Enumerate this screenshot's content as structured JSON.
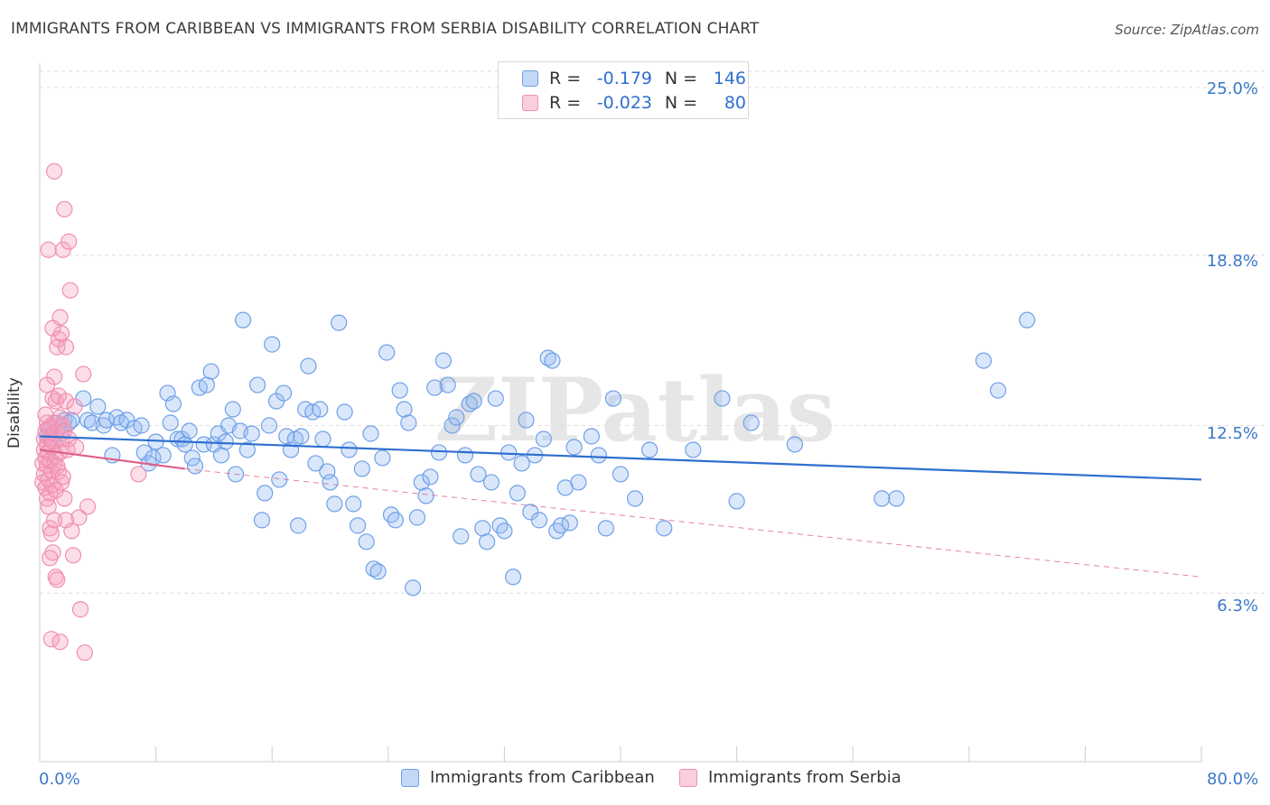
{
  "title": "IMMIGRANTS FROM CARIBBEAN VS IMMIGRANTS FROM SERBIA DISABILITY CORRELATION CHART",
  "source": "Source: ZipAtlas.com",
  "watermark": "ZIPatlas",
  "legend_top": {
    "rows": [
      {
        "r_label": "R =",
        "r_value": "-0.179",
        "n_label": "N =",
        "n_value": "146",
        "color": "#6fa0e8"
      },
      {
        "r_label": "R =",
        "r_value": "-0.023",
        "n_label": "N =",
        "n_value": "80",
        "color": "#f08fb0"
      }
    ]
  },
  "legend_bottom": {
    "items": [
      {
        "label": "Immigrants from Caribbean",
        "color": "#6fa0e8"
      },
      {
        "label": "Immigrants from Serbia",
        "color": "#f08fb0"
      }
    ]
  },
  "chart_data": {
    "type": "scatter",
    "ylabel": "Disability",
    "xlim": [
      0,
      80
    ],
    "ylim": [
      0,
      26.3
    ],
    "x_tick_labels": [
      "0.0%",
      "80.0%"
    ],
    "y_ticks": [
      6.3,
      12.5,
      18.8,
      25.0
    ],
    "y_tick_labels": [
      "6.3%",
      "12.5%",
      "18.8%",
      "25.0%"
    ],
    "grid": true,
    "legend_position": "top-center",
    "series": [
      {
        "name": "Immigrants from Caribbean",
        "color": "#6fa0e8",
        "line_color": "#2e6fcf",
        "trend": {
          "x": [
            0,
            80
          ],
          "y": [
            12.1,
            10.5
          ],
          "dashed_extension": false
        },
        "points": [
          [
            0.5,
            12.1
          ],
          [
            0.6,
            12.4
          ],
          [
            0.8,
            12.0
          ],
          [
            1.0,
            12.6
          ],
          [
            1.2,
            12.3
          ],
          [
            1.5,
            12.2
          ],
          [
            1.7,
            12.7
          ],
          [
            2.0,
            12.6
          ],
          [
            2.2,
            12.7
          ],
          [
            3.0,
            13.5
          ],
          [
            3.3,
            12.7
          ],
          [
            3.6,
            12.6
          ],
          [
            4.0,
            13.2
          ],
          [
            4.4,
            12.5
          ],
          [
            4.6,
            12.7
          ],
          [
            5.0,
            11.4
          ],
          [
            5.3,
            12.8
          ],
          [
            5.6,
            12.6
          ],
          [
            6.0,
            12.7
          ],
          [
            6.5,
            12.4
          ],
          [
            7.0,
            12.5
          ],
          [
            7.2,
            11.5
          ],
          [
            7.5,
            11.1
          ],
          [
            7.8,
            11.3
          ],
          [
            8.0,
            11.9
          ],
          [
            8.5,
            11.4
          ],
          [
            8.8,
            13.7
          ],
          [
            9.0,
            12.6
          ],
          [
            9.2,
            13.3
          ],
          [
            9.5,
            12.0
          ],
          [
            9.8,
            12.0
          ],
          [
            10.0,
            11.8
          ],
          [
            10.3,
            12.3
          ],
          [
            10.5,
            11.3
          ],
          [
            10.7,
            11.0
          ],
          [
            11.0,
            13.9
          ],
          [
            11.3,
            11.8
          ],
          [
            11.5,
            14.0
          ],
          [
            11.8,
            14.5
          ],
          [
            12.0,
            11.8
          ],
          [
            12.3,
            12.2
          ],
          [
            12.5,
            11.4
          ],
          [
            12.8,
            11.9
          ],
          [
            13.0,
            12.5
          ],
          [
            13.3,
            13.1
          ],
          [
            13.5,
            10.7
          ],
          [
            13.8,
            12.3
          ],
          [
            14.0,
            16.4
          ],
          [
            14.3,
            11.6
          ],
          [
            14.6,
            12.2
          ],
          [
            15.0,
            14.0
          ],
          [
            15.3,
            9.0
          ],
          [
            15.5,
            10.0
          ],
          [
            15.8,
            12.5
          ],
          [
            16.0,
            15.5
          ],
          [
            16.3,
            13.4
          ],
          [
            16.5,
            10.5
          ],
          [
            16.8,
            13.7
          ],
          [
            17.0,
            12.1
          ],
          [
            17.3,
            11.6
          ],
          [
            17.6,
            12.0
          ],
          [
            17.8,
            8.8
          ],
          [
            18.0,
            12.1
          ],
          [
            18.3,
            13.1
          ],
          [
            18.5,
            14.7
          ],
          [
            18.8,
            13.0
          ],
          [
            19.0,
            11.1
          ],
          [
            19.3,
            13.1
          ],
          [
            19.5,
            12.0
          ],
          [
            19.8,
            10.8
          ],
          [
            20.0,
            10.4
          ],
          [
            20.3,
            9.6
          ],
          [
            20.6,
            16.3
          ],
          [
            21.0,
            13.0
          ],
          [
            21.3,
            11.6
          ],
          [
            21.6,
            9.6
          ],
          [
            21.9,
            8.8
          ],
          [
            22.2,
            10.9
          ],
          [
            22.5,
            8.2
          ],
          [
            22.8,
            12.2
          ],
          [
            23.0,
            7.2
          ],
          [
            23.3,
            7.1
          ],
          [
            23.6,
            11.3
          ],
          [
            23.9,
            15.2
          ],
          [
            24.2,
            9.2
          ],
          [
            24.5,
            9.0
          ],
          [
            24.8,
            13.8
          ],
          [
            25.1,
            13.1
          ],
          [
            25.4,
            12.6
          ],
          [
            25.7,
            6.5
          ],
          [
            26.0,
            9.1
          ],
          [
            26.3,
            10.4
          ],
          [
            26.6,
            9.9
          ],
          [
            26.9,
            10.6
          ],
          [
            27.2,
            13.9
          ],
          [
            27.5,
            11.5
          ],
          [
            27.8,
            14.9
          ],
          [
            28.1,
            14.0
          ],
          [
            28.4,
            12.5
          ],
          [
            28.7,
            12.8
          ],
          [
            29.0,
            8.4
          ],
          [
            29.3,
            11.4
          ],
          [
            29.6,
            13.3
          ],
          [
            29.9,
            13.4
          ],
          [
            30.2,
            10.7
          ],
          [
            30.5,
            8.7
          ],
          [
            30.8,
            8.2
          ],
          [
            31.1,
            10.4
          ],
          [
            31.4,
            13.5
          ],
          [
            31.7,
            8.8
          ],
          [
            32.0,
            8.6
          ],
          [
            32.3,
            11.5
          ],
          [
            32.6,
            6.9
          ],
          [
            32.9,
            10.0
          ],
          [
            33.2,
            11.1
          ],
          [
            33.5,
            12.7
          ],
          [
            33.8,
            9.3
          ],
          [
            34.1,
            11.4
          ],
          [
            34.4,
            9.0
          ],
          [
            34.7,
            12.0
          ],
          [
            35.0,
            15.0
          ],
          [
            35.3,
            14.9
          ],
          [
            35.6,
            8.6
          ],
          [
            35.9,
            8.8
          ],
          [
            36.2,
            10.2
          ],
          [
            36.5,
            8.9
          ],
          [
            36.8,
            11.7
          ],
          [
            37.1,
            10.4
          ],
          [
            38.0,
            12.1
          ],
          [
            38.5,
            11.4
          ],
          [
            39.0,
            8.7
          ],
          [
            39.5,
            13.5
          ],
          [
            40.0,
            10.7
          ],
          [
            41.0,
            9.8
          ],
          [
            42.0,
            11.6
          ],
          [
            43.0,
            8.7
          ],
          [
            45.0,
            11.6
          ],
          [
            47.0,
            13.5
          ],
          [
            48.0,
            9.7
          ],
          [
            49.0,
            12.6
          ],
          [
            52.0,
            11.8
          ],
          [
            58.0,
            9.8
          ],
          [
            59.0,
            9.8
          ],
          [
            65.0,
            14.9
          ],
          [
            66.0,
            13.8
          ],
          [
            68.0,
            16.4
          ]
        ]
      },
      {
        "name": "Immigrants from Serbia",
        "color": "#f08fb0",
        "line_color": "#e0608a",
        "trend": {
          "x": [
            0,
            10
          ],
          "y": [
            11.6,
            10.9
          ],
          "dashed_extension": true,
          "dashed_to": {
            "x": 80,
            "y": 6.9
          }
        },
        "points": [
          [
            0.2,
            11.1
          ],
          [
            0.2,
            10.4
          ],
          [
            0.3,
            11.6
          ],
          [
            0.3,
            12.0
          ],
          [
            0.3,
            10.7
          ],
          [
            0.4,
            12.3
          ],
          [
            0.4,
            11.3
          ],
          [
            0.4,
            10.2
          ],
          [
            0.5,
            12.6
          ],
          [
            0.5,
            11.8
          ],
          [
            0.5,
            11.0
          ],
          [
            0.5,
            9.8
          ],
          [
            0.6,
            12.4
          ],
          [
            0.6,
            11.5
          ],
          [
            0.6,
            10.5
          ],
          [
            0.6,
            9.5
          ],
          [
            0.7,
            12.0
          ],
          [
            0.7,
            11.2
          ],
          [
            0.7,
            10.0
          ],
          [
            0.7,
            8.7
          ],
          [
            0.8,
            12.5
          ],
          [
            0.8,
            11.7
          ],
          [
            0.8,
            10.8
          ],
          [
            0.8,
            8.5
          ],
          [
            0.9,
            13.5
          ],
          [
            0.9,
            11.9
          ],
          [
            0.9,
            10.3
          ],
          [
            0.9,
            7.8
          ],
          [
            1.0,
            14.3
          ],
          [
            1.0,
            12.2
          ],
          [
            1.0,
            11.1
          ],
          [
            1.0,
            9.0
          ],
          [
            1.1,
            13.4
          ],
          [
            1.1,
            11.4
          ],
          [
            1.1,
            10.1
          ],
          [
            1.1,
            6.9
          ],
          [
            1.2,
            15.4
          ],
          [
            1.2,
            12.6
          ],
          [
            1.2,
            11.0
          ],
          [
            1.2,
            6.8
          ],
          [
            1.3,
            15.7
          ],
          [
            1.3,
            13.6
          ],
          [
            1.3,
            10.8
          ],
          [
            1.4,
            16.5
          ],
          [
            1.4,
            12.8
          ],
          [
            1.4,
            11.5
          ],
          [
            1.5,
            15.9
          ],
          [
            1.5,
            12.0
          ],
          [
            1.5,
            10.4
          ],
          [
            1.6,
            19.0
          ],
          [
            1.6,
            12.5
          ],
          [
            1.6,
            10.6
          ],
          [
            1.7,
            20.5
          ],
          [
            1.7,
            12.3
          ],
          [
            1.7,
            9.8
          ],
          [
            1.8,
            15.4
          ],
          [
            1.8,
            13.4
          ],
          [
            1.9,
            11.6
          ],
          [
            2.0,
            19.3
          ],
          [
            2.0,
            12.0
          ],
          [
            2.1,
            17.5
          ],
          [
            2.2,
            8.6
          ],
          [
            2.3,
            7.7
          ],
          [
            2.5,
            11.7
          ],
          [
            2.7,
            9.1
          ],
          [
            2.8,
            5.7
          ],
          [
            3.0,
            14.4
          ],
          [
            3.1,
            4.1
          ],
          [
            3.3,
            9.5
          ],
          [
            0.6,
            19.0
          ],
          [
            1.0,
            21.9
          ],
          [
            0.8,
            4.6
          ],
          [
            1.4,
            4.5
          ],
          [
            1.8,
            9.0
          ],
          [
            6.8,
            10.7
          ],
          [
            0.7,
            7.6
          ],
          [
            0.9,
            16.1
          ],
          [
            0.5,
            14.0
          ],
          [
            2.4,
            13.2
          ],
          [
            0.4,
            12.9
          ]
        ]
      }
    ]
  }
}
